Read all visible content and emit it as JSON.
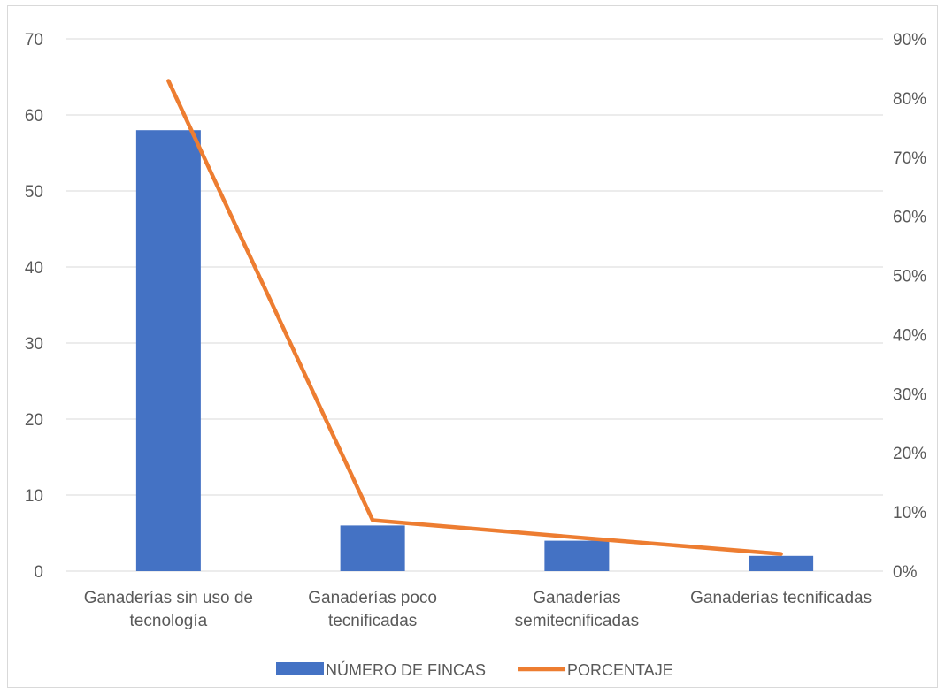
{
  "chart_data": {
    "type": "bar",
    "categories": [
      [
        "Ganaderías sin uso de",
        "tecnología"
      ],
      [
        "Ganaderías poco",
        "tecnificadas"
      ],
      [
        "Ganaderías",
        "semitecnificadas"
      ],
      [
        "Ganaderías tecnificadas"
      ]
    ],
    "series": [
      {
        "name": "NÚMERO DE FINCAS",
        "type": "bar",
        "axis": "left",
        "color": "#4472C4",
        "values": [
          58,
          6,
          4,
          2
        ]
      },
      {
        "name": "PORCENTAJE",
        "type": "line",
        "axis": "right",
        "color": "#ED7D31",
        "values": [
          0.829,
          0.086,
          0.057,
          0.029
        ]
      }
    ],
    "y_left": {
      "lim": [
        0,
        70
      ],
      "ticks": [
        0,
        10,
        20,
        30,
        40,
        50,
        60,
        70
      ],
      "tick_labels": [
        "0",
        "10",
        "20",
        "30",
        "40",
        "50",
        "60",
        "70"
      ]
    },
    "y_right": {
      "lim": [
        0,
        0.9
      ],
      "ticks": [
        0,
        0.1,
        0.2,
        0.3,
        0.4,
        0.5,
        0.6,
        0.7,
        0.8,
        0.9
      ],
      "tick_labels": [
        "0%",
        "10%",
        "20%",
        "30%",
        "40%",
        "50%",
        "60%",
        "70%",
        "80%",
        "90%"
      ]
    },
    "title": "",
    "xlabel": "",
    "ylabel": "",
    "grid": true,
    "gridline_color": "#d9d9d9",
    "legend_position": "bottom"
  }
}
